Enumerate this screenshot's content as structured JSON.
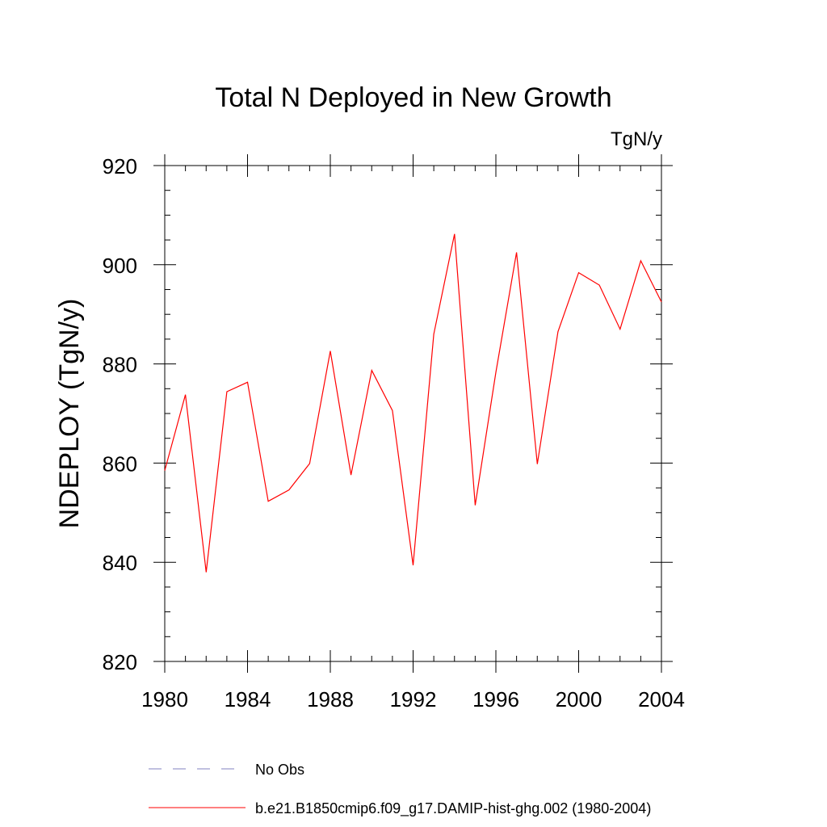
{
  "chart_data": {
    "type": "line",
    "title": "Total N Deployed in New Growth",
    "units": "TgN/y",
    "ylabel": "NDEPLOY  (TgN/y)",
    "xlabel": "",
    "xlim": [
      1980,
      2004
    ],
    "ylim": [
      820,
      920
    ],
    "x_ticks": [
      1980,
      1984,
      1988,
      1992,
      1996,
      2000,
      2004
    ],
    "y_ticks": [
      820,
      840,
      860,
      880,
      900,
      920
    ],
    "grid": false,
    "series": [
      {
        "name": "b.e21.B1850cmip6.f09_g17.DAMIP-hist-ghg.002 (1980-2004)",
        "color": "#ff0000",
        "x": [
          1980,
          1981,
          1982,
          1983,
          1984,
          1985,
          1986,
          1987,
          1988,
          1989,
          1990,
          1991,
          1992,
          1993,
          1994,
          1995,
          1996,
          1997,
          1998,
          1999,
          2000,
          2001,
          2002,
          2003,
          2004
        ],
        "y": [
          858.5,
          873.8,
          838.0,
          874.4,
          876.3,
          852.3,
          854.6,
          859.9,
          882.6,
          857.6,
          878.7,
          870.6,
          839.4,
          886.0,
          906.2,
          851.5,
          878.3,
          902.5,
          859.8,
          886.5,
          898.4,
          895.9,
          887.0,
          900.8,
          892.5
        ]
      }
    ],
    "legend": [
      {
        "label": "No Obs",
        "style": "dashed",
        "color": "#8080c0"
      },
      {
        "label": "b.e21.B1850cmip6.f09_g17.DAMIP-hist-ghg.002 (1980-2004)",
        "style": "solid",
        "color": "#ff0000"
      }
    ],
    "legend_position": "bottom"
  }
}
